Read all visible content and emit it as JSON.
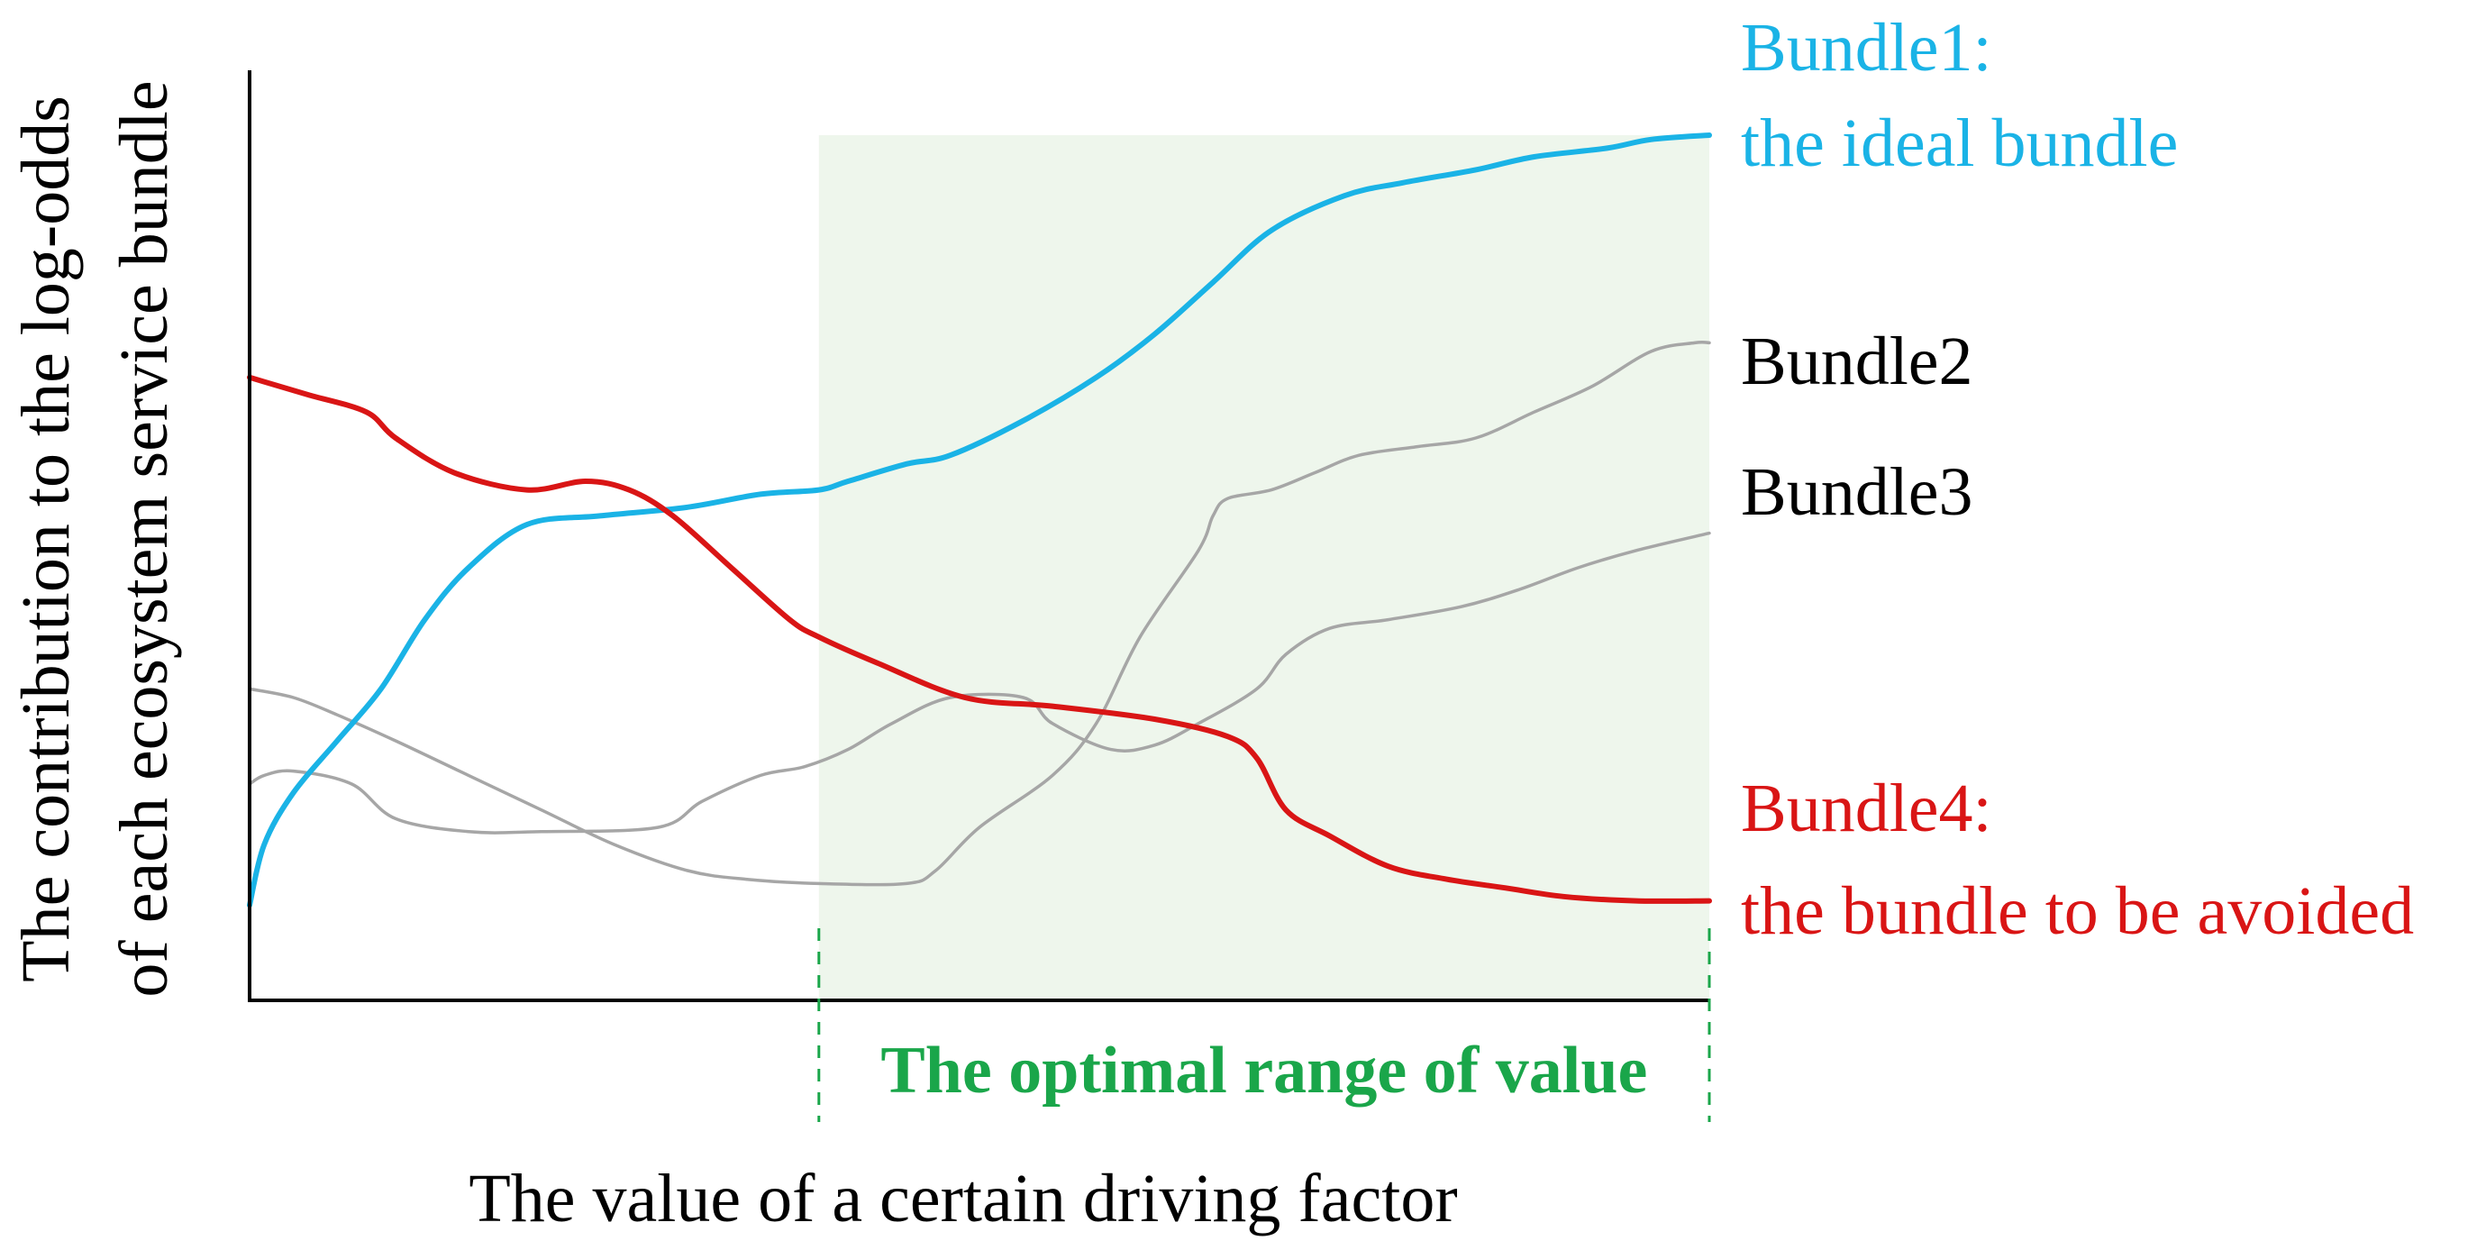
{
  "chart_data": {
    "type": "line",
    "xlabel": "The value of a certain driving factor",
    "ylabel_line1": "The contribution to the log-odds",
    "ylabel_line2": "of each ecosystem service bundle",
    "xlim": [
      0,
      100
    ],
    "ylim": [
      0,
      100
    ],
    "grid": false,
    "ticks": false,
    "legend_placement": "right",
    "optimal_range": {
      "label": "The optimal range of value",
      "x_start": 39,
      "x_end": 100,
      "color": "#1aa64a",
      "fill": "#eef6ec"
    },
    "series": [
      {
        "id": "bundle1",
        "label_line1": "Bundle1:",
        "label_line2": "the ideal bundle",
        "color": "#1ab3e6",
        "emphasis": true,
        "points": [
          [
            0,
            11
          ],
          [
            1,
            18
          ],
          [
            3,
            24
          ],
          [
            6,
            30
          ],
          [
            9,
            36
          ],
          [
            12,
            44
          ],
          [
            15,
            50
          ],
          [
            19,
            55
          ],
          [
            24,
            56
          ],
          [
            30,
            57
          ],
          [
            35,
            58.5
          ],
          [
            39,
            59
          ],
          [
            41,
            60
          ],
          [
            45,
            62
          ],
          [
            48,
            63
          ],
          [
            53,
            67
          ],
          [
            58,
            72
          ],
          [
            62,
            77
          ],
          [
            66,
            83
          ],
          [
            70,
            89
          ],
          [
            75,
            93
          ],
          [
            79,
            94.5
          ],
          [
            84,
            96
          ],
          [
            88,
            97.5
          ],
          [
            93,
            98.5
          ],
          [
            96,
            99.5
          ],
          [
            100,
            100
          ]
        ]
      },
      {
        "id": "bundle2",
        "label_line1": "Bundle2",
        "label_line2": "",
        "color": "#a6a6a6",
        "emphasis": false,
        "points": [
          [
            0,
            36
          ],
          [
            3,
            35
          ],
          [
            6,
            33
          ],
          [
            10,
            30
          ],
          [
            15,
            26
          ],
          [
            20,
            22
          ],
          [
            25,
            18
          ],
          [
            30,
            15
          ],
          [
            34,
            14
          ],
          [
            39,
            13.5
          ],
          [
            45,
            13.5
          ],
          [
            47,
            15
          ],
          [
            50,
            20
          ],
          [
            55,
            26
          ],
          [
            58,
            32
          ],
          [
            61,
            42
          ],
          [
            65,
            52
          ],
          [
            66,
            56
          ],
          [
            67,
            58
          ],
          [
            70,
            59
          ],
          [
            73,
            61
          ],
          [
            76,
            63
          ],
          [
            80,
            64
          ],
          [
            84,
            65
          ],
          [
            88,
            68
          ],
          [
            92,
            71
          ],
          [
            96,
            75
          ],
          [
            99,
            76
          ],
          [
            100,
            76
          ]
        ]
      },
      {
        "id": "bundle3",
        "label_line1": "Bundle3",
        "label_line2": "",
        "color": "#a6a6a6",
        "emphasis": false,
        "points": [
          [
            0,
            25
          ],
          [
            1,
            26
          ],
          [
            3,
            26.5
          ],
          [
            7,
            25
          ],
          [
            10,
            21
          ],
          [
            15,
            19.5
          ],
          [
            20,
            19.5
          ],
          [
            28,
            20
          ],
          [
            31,
            23
          ],
          [
            35,
            26
          ],
          [
            38,
            27
          ],
          [
            41,
            29
          ],
          [
            44,
            32
          ],
          [
            48,
            35
          ],
          [
            53,
            35
          ],
          [
            55,
            32
          ],
          [
            59,
            29
          ],
          [
            62,
            29.5
          ],
          [
            65,
            32
          ],
          [
            69,
            36
          ],
          [
            71,
            40
          ],
          [
            74,
            43
          ],
          [
            78,
            44
          ],
          [
            83,
            45.5
          ],
          [
            87,
            47.5
          ],
          [
            91,
            50
          ],
          [
            95,
            52
          ],
          [
            100,
            54
          ]
        ]
      },
      {
        "id": "bundle4",
        "label_line1": "Bundle4:",
        "label_line2": "the bundle to be avoided",
        "color": "#d91515",
        "emphasis": true,
        "points": [
          [
            0,
            72
          ],
          [
            1,
            71.5
          ],
          [
            4,
            70
          ],
          [
            8,
            68
          ],
          [
            10,
            65
          ],
          [
            14,
            61
          ],
          [
            19,
            59
          ],
          [
            23,
            60
          ],
          [
            26,
            59
          ],
          [
            29,
            56
          ],
          [
            33,
            50
          ],
          [
            37,
            44
          ],
          [
            39,
            42
          ],
          [
            43,
            39
          ],
          [
            49,
            35
          ],
          [
            55,
            34
          ],
          [
            62,
            32.5
          ],
          [
            67,
            30.5
          ],
          [
            69,
            28
          ],
          [
            71,
            22
          ],
          [
            74,
            19
          ],
          [
            78,
            15.5
          ],
          [
            82,
            14
          ],
          [
            86,
            13
          ],
          [
            90,
            12
          ],
          [
            95,
            11.5
          ],
          [
            100,
            11.5
          ]
        ]
      }
    ]
  }
}
